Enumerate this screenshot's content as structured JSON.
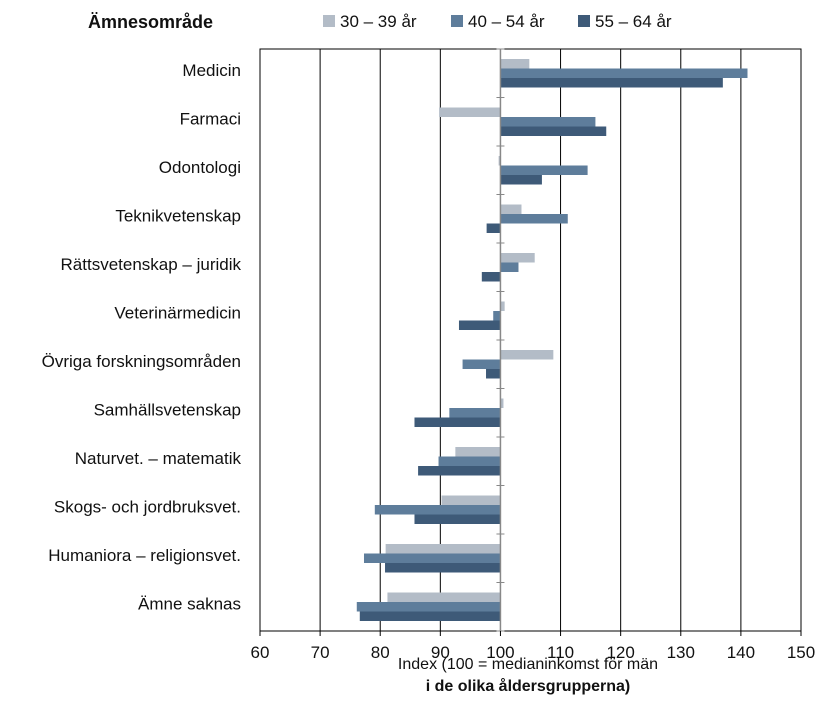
{
  "chart_data": {
    "type": "bar",
    "orientation": "horizontal",
    "legend_title": "Ämnesområde",
    "categories": [
      "Medicin",
      "Farmaci",
      "Odontologi",
      "Teknikvetenskap",
      "Rättsvetenskap – juridik",
      "Veterinärmedicin",
      "Övriga forskningsområden",
      "Samhällsvetenskap",
      "Naturvet. – matematik",
      "Skogs- och jordbruksvet.",
      "Humaniora – religionsvet.",
      "Ämne saknas"
    ],
    "series": [
      {
        "name": "30 – 39 år",
        "color": "#b3bcc7",
        "values": [
          104.8,
          89.8,
          99.7,
          103.5,
          105.7,
          100.7,
          108.8,
          100.5,
          92.5,
          90.2,
          80.9,
          81.2
        ]
      },
      {
        "name": "40 – 54 år",
        "color": "#5e7d9b",
        "values": [
          141.1,
          115.8,
          114.5,
          111.2,
          103.0,
          98.8,
          93.7,
          91.5,
          89.7,
          79.1,
          77.3,
          76.1
        ]
      },
      {
        "name": "55 – 64 år",
        "color": "#3e5a78",
        "values": [
          137.0,
          117.6,
          106.9,
          97.7,
          96.9,
          93.1,
          97.6,
          85.7,
          86.3,
          85.7,
          80.8,
          76.6
        ]
      }
    ],
    "baseline": 100,
    "xlim": [
      60,
      150
    ],
    "xticks": [
      60,
      70,
      80,
      90,
      100,
      110,
      120,
      130,
      140,
      150
    ],
    "xlabel_line1": "Index (100 = medianinkomst för män",
    "xlabel_line2": "i de olika åldersgrupperna)",
    "grid": true,
    "legend_position": "top"
  }
}
